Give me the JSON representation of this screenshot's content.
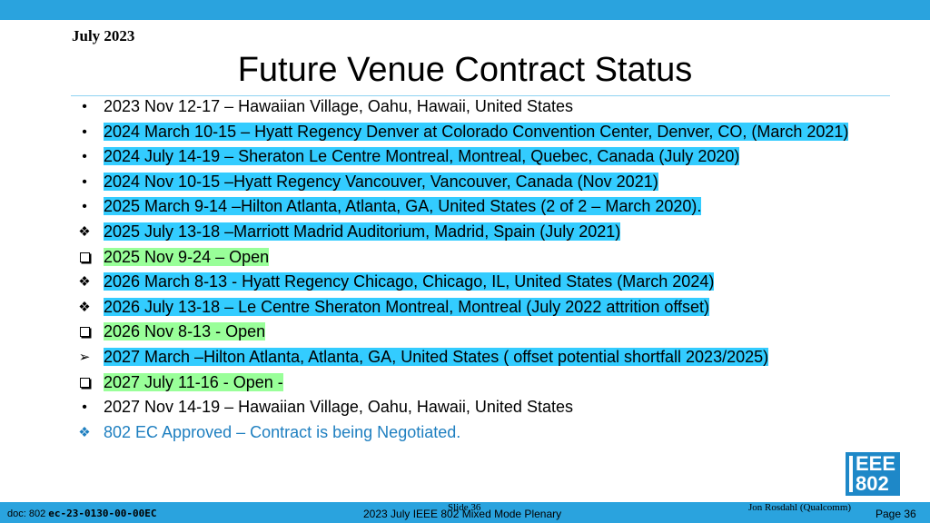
{
  "header": {
    "date": "July 2023",
    "title": "Future Venue Contract Status"
  },
  "bullets": [
    {
      "marker": "dot",
      "text": "2023 Nov 12-17 – Hawaiian Village, Oahu, Hawaii, United States",
      "highlight": "none"
    },
    {
      "marker": "dot",
      "text": "2024 March 10-15 – Hyatt Regency Denver at Colorado Convention Center, Denver, CO, (March 2021)",
      "highlight": "cyan"
    },
    {
      "marker": "dot",
      "text": "2024 July 14-19 – Sheraton Le Centre Montreal, Montreal, Quebec, Canada (July 2020)",
      "highlight": "cyan"
    },
    {
      "marker": "dot",
      "text": "2024 Nov 10-15 –Hyatt Regency Vancouver, Vancouver, Canada (Nov 2021)",
      "highlight": "cyan"
    },
    {
      "marker": "dot",
      "text": "2025 March 9-14 –Hilton Atlanta, Atlanta, GA, United States (2 of 2 – March 2020).",
      "highlight": "cyan"
    },
    {
      "marker": "diamond",
      "text": "2025 July 13-18 –Marriott Madrid Auditorium, Madrid, Spain (July 2021)",
      "highlight": "cyan"
    },
    {
      "marker": "box",
      "text": "2025 Nov 9-24 – Open",
      "highlight": "green"
    },
    {
      "marker": "diamond",
      "text": "2026 March 8-13 - Hyatt Regency Chicago, Chicago, IL, United States (March 2024)",
      "highlight": "cyan"
    },
    {
      "marker": "diamond",
      "text": "2026 July 13-18 – Le Centre Sheraton Montreal, Montreal (July 2022 attrition offset)",
      "highlight": "cyan"
    },
    {
      "marker": "box",
      "text": "2026 Nov 8-13 -  Open",
      "highlight": "green"
    },
    {
      "marker": "arrow",
      "text": "2027 March –Hilton Atlanta, Atlanta, GA, United States ( offset potential shortfall 2023/2025)",
      "highlight": "cyan"
    },
    {
      "marker": "box",
      "text": "2027 July  11-16 -  Open -",
      "highlight": "green"
    },
    {
      "marker": "dot",
      "text": "2027 Nov 14-19 – Hawaiian Village, Oahu, Hawaii, United States",
      "highlight": "none"
    },
    {
      "marker": "diamond-blue",
      "text": "802 EC Approved – Contract is being Negotiated.",
      "highlight": "blue-text"
    }
  ],
  "logo": {
    "line1": "EEE",
    "line2": "802"
  },
  "footer": {
    "doc_prefix": "doc: 802 ",
    "doc_code": "ec-23-0130-00-00EC",
    "slide": "Slide 36",
    "plenary": "2023 July IEEE 802 Mixed Mode Plenary",
    "author": "Jon Rosdahl (Qualcomm)",
    "page": "Page 36"
  },
  "colors": {
    "band": "#2aa3de",
    "cyan_highlight": "#33ccff",
    "green_highlight": "#99ff99",
    "blue_text": "#1e7fc0"
  }
}
